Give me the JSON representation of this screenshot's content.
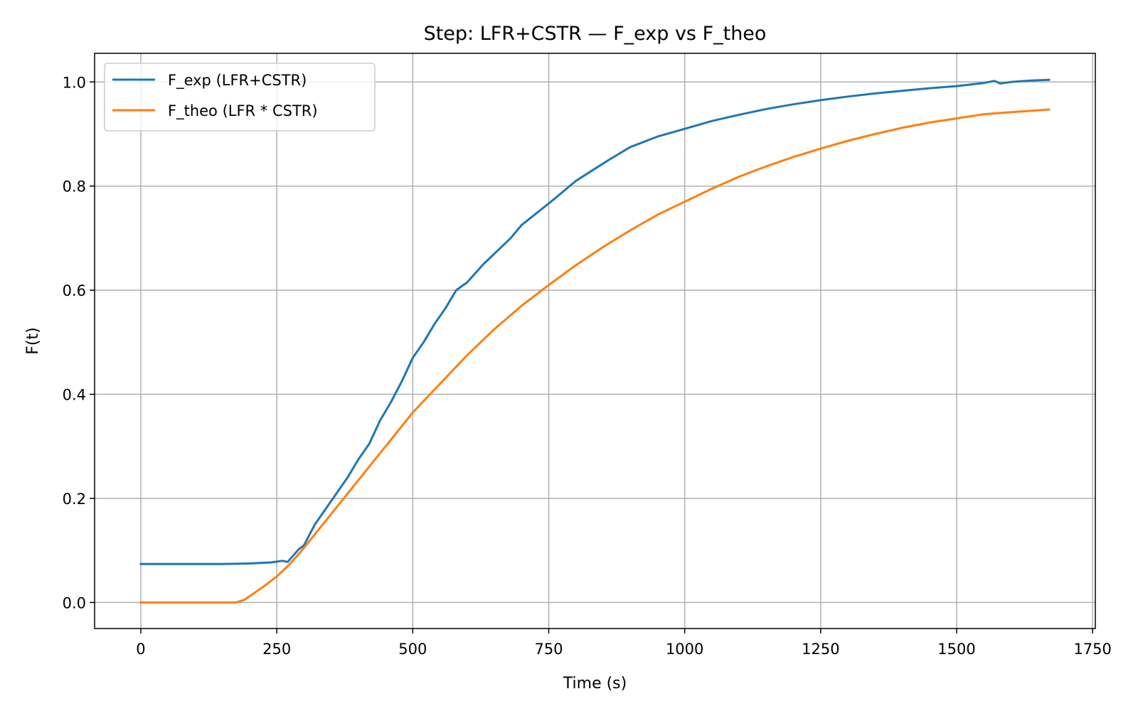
{
  "chart_data": {
    "type": "line",
    "title": "Step: LFR+CSTR — F_exp vs F_theo",
    "xlabel": "Time (s)",
    "ylabel": "F(t)",
    "xlim": [
      -85,
      1755
    ],
    "ylim": [
      -0.05,
      1.055
    ],
    "xticks": [
      0,
      250,
      500,
      750,
      1000,
      1250,
      1500,
      1750
    ],
    "yticks": [
      0.0,
      0.2,
      0.4,
      0.6,
      0.8,
      1.0
    ],
    "xtick_labels": [
      "0",
      "250",
      "500",
      "750",
      "1000",
      "1250",
      "1500",
      "1750"
    ],
    "ytick_labels": [
      "0.0",
      "0.2",
      "0.4",
      "0.6",
      "0.8",
      "1.0"
    ],
    "grid": true,
    "legend_position": "upper-left",
    "series": [
      {
        "name": "F_exp (LFR+CSTR)",
        "color": "#1f77b4",
        "x": [
          0,
          50,
          100,
          150,
          200,
          240,
          260,
          270,
          290,
          300,
          320,
          340,
          360,
          380,
          400,
          420,
          440,
          460,
          480,
          500,
          520,
          540,
          560,
          580,
          600,
          630,
          650,
          680,
          700,
          730,
          760,
          800,
          830,
          860,
          900,
          950,
          1000,
          1050,
          1100,
          1150,
          1200,
          1250,
          1300,
          1350,
          1400,
          1450,
          1500,
          1550,
          1570,
          1580,
          1600,
          1640,
          1670
        ],
        "y": [
          0.074,
          0.074,
          0.074,
          0.074,
          0.075,
          0.077,
          0.08,
          0.078,
          0.102,
          0.11,
          0.15,
          0.18,
          0.21,
          0.24,
          0.275,
          0.305,
          0.35,
          0.385,
          0.425,
          0.47,
          0.5,
          0.535,
          0.565,
          0.6,
          0.615,
          0.65,
          0.67,
          0.7,
          0.725,
          0.75,
          0.775,
          0.81,
          0.83,
          0.85,
          0.875,
          0.895,
          0.91,
          0.925,
          0.937,
          0.948,
          0.957,
          0.965,
          0.972,
          0.978,
          0.983,
          0.988,
          0.992,
          0.998,
          1.002,
          0.997,
          1.0,
          1.003,
          1.004
        ]
      },
      {
        "name": "F_theo (LFR * CSTR)",
        "color": "#ff7f0e",
        "x": [
          0,
          100,
          175,
          190,
          200,
          225,
          250,
          275,
          300,
          350,
          400,
          450,
          500,
          550,
          600,
          650,
          700,
          750,
          800,
          850,
          900,
          950,
          1000,
          1050,
          1100,
          1150,
          1200,
          1250,
          1300,
          1350,
          1400,
          1450,
          1500,
          1550,
          1600,
          1670
        ],
        "y": [
          0,
          0,
          0,
          0.005,
          0.012,
          0.03,
          0.05,
          0.075,
          0.105,
          0.17,
          0.235,
          0.3,
          0.365,
          0.42,
          0.475,
          0.525,
          0.57,
          0.61,
          0.648,
          0.683,
          0.715,
          0.745,
          0.77,
          0.795,
          0.818,
          0.838,
          0.856,
          0.872,
          0.887,
          0.9,
          0.912,
          0.922,
          0.93,
          0.938,
          0.942,
          0.947
        ]
      }
    ]
  }
}
